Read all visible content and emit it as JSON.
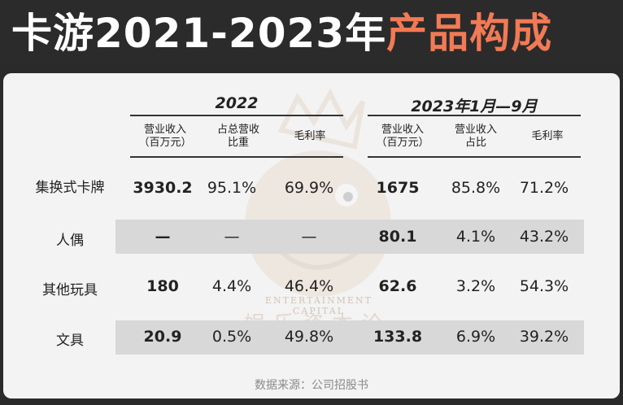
{
  "title": {
    "part1": "卡游2021-2023年",
    "part2": "产品构成"
  },
  "table": {
    "year_2022": "2022",
    "year_2023": "2023年1月—9月",
    "headers_2022": [
      "营业收入\n（百万元）",
      "占总营收\n比重",
      "毛利率"
    ],
    "headers_2023": [
      "营业收入\n（百万元）",
      "营业收入\n占比",
      "毛利率"
    ],
    "rows": [
      {
        "label": "集换式卡牌",
        "v2022": [
          "3930.2",
          "95.1%",
          "69.9%"
        ],
        "v2023": [
          "1675",
          "85.8%",
          "71.2%"
        ]
      },
      {
        "label": "人偶",
        "v2022": [
          "—",
          "—",
          "—"
        ],
        "v2023": [
          "80.1",
          "4.1%",
          "43.2%"
        ]
      },
      {
        "label": "其他玩具",
        "v2022": [
          "180",
          "4.4%",
          "46.4%"
        ],
        "v2023": [
          "62.6",
          "3.2%",
          "54.3%"
        ]
      },
      {
        "label": "文具",
        "v2022": [
          "20.9",
          "0.5%",
          "49.8%"
        ],
        "v2023": [
          "133.8",
          "6.9%",
          "39.2%"
        ]
      }
    ]
  },
  "watermark": {
    "en": "ENTERTAINMENT CAPITAL",
    "cn": "娱乐资本论"
  },
  "source": "数据来源：公司招股书",
  "colors": {
    "accent": "#f27a55",
    "header_bg": "#2b2b2b",
    "card_bg": "#f3f3f3",
    "stripe": "#d8d8d8"
  }
}
